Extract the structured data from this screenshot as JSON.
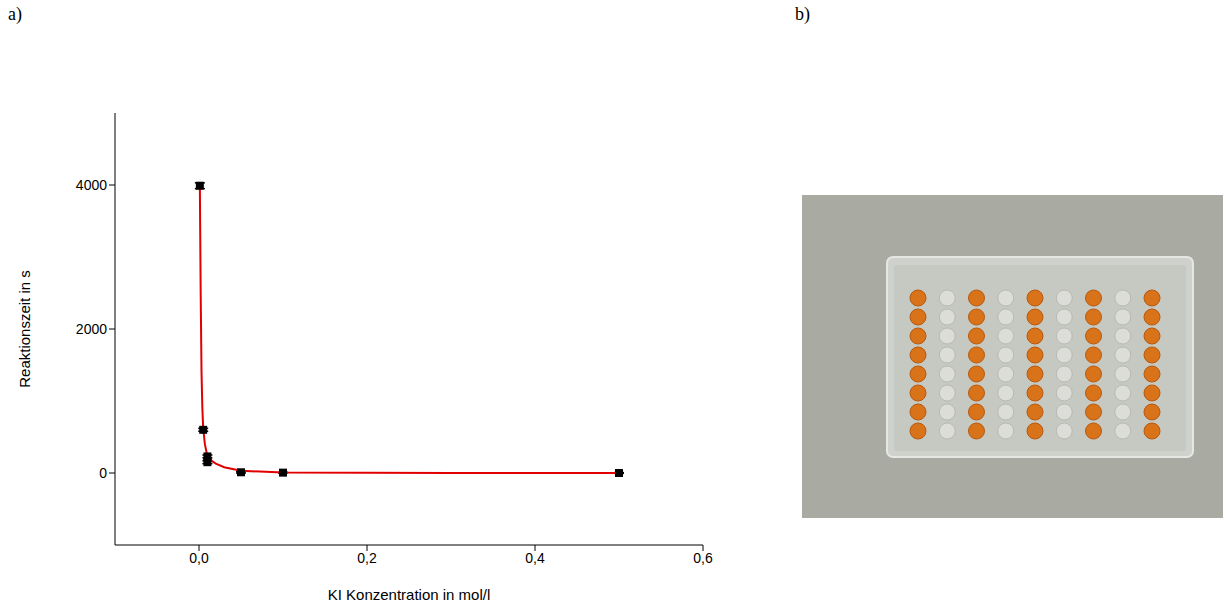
{
  "panel_labels": [
    "a)",
    "b)"
  ],
  "chart_data": {
    "type": "scatter",
    "x_label": "KI Konzentration in mol/l",
    "y_label": "Reaktionszeit in s",
    "xlim": [
      -0.1,
      0.6
    ],
    "xticks": [
      {
        "value": 0,
        "label": "0,0"
      },
      {
        "value": 0.2,
        "label": "0,2"
      },
      {
        "value": 0.4,
        "label": "0,4"
      },
      {
        "value": 0.6,
        "label": "0,6"
      }
    ],
    "ylim": [
      -1000,
      5000
    ],
    "yticks": [
      0,
      2000,
      4000
    ],
    "grid": false,
    "series": [
      {
        "type": "line",
        "color": "#e00000",
        "x": [
          0.001,
          0.002,
          0.003,
          0.004,
          0.005,
          0.007,
          0.01,
          0.015,
          0.02,
          0.03,
          0.05,
          0.1,
          0.2,
          0.3,
          0.5
        ],
        "values": [
          4000,
          2500,
          1400,
          900,
          620,
          400,
          230,
          170,
          130,
          80,
          30,
          8,
          2,
          1,
          0
        ]
      },
      {
        "type": "scatter",
        "color": "#000000",
        "marker": "square",
        "x": [
          0.001,
          0.005,
          0.01,
          0.01,
          0.05,
          0.1,
          0.5
        ],
        "values": [
          3990,
          600,
          230,
          150,
          10,
          5,
          0
        ],
        "errors": [
          40,
          20,
          20,
          20,
          10,
          5,
          5
        ]
      }
    ]
  }
}
